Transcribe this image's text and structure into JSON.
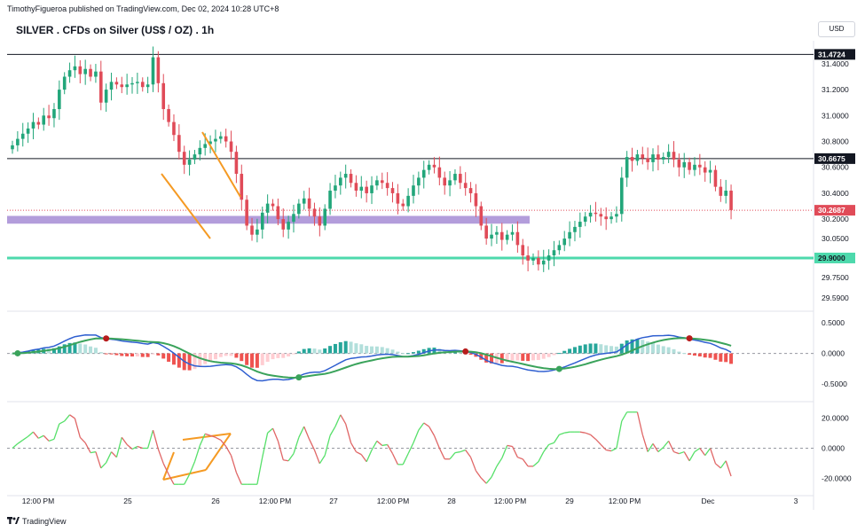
{
  "header": {
    "publisher_line": "TimothyFigueroa published on TradingView.com, Dec 02, 2024 10:28 UTC+8",
    "title": "SILVER . CFDs on Silver (US$ / OZ) . 1h",
    "currency": "USD"
  },
  "footer": {
    "brand": "TradingView"
  },
  "colors": {
    "up": "#22a67a",
    "down": "#e04b58",
    "support_zone": "#b39ddb",
    "support_line": "#4dd9ac",
    "annotation": "#f59a23",
    "fast_line": "#2f5fd0",
    "signal_up": "#3aa35b",
    "signal_down": "#b71c1c",
    "osc_up": "#57e06a",
    "osc_down": "#e06666"
  },
  "chart_data": [
    {
      "type": "candlestick",
      "title": "SILVER . CFDs on Silver (US$ / OZ) . 1h",
      "y_ticks": [
        "31.4000",
        "31.2000",
        "31.0000",
        "30.8000",
        "30.6000",
        "30.4000",
        "30.2000",
        "30.0500",
        "29.7500",
        "29.5900"
      ],
      "y_range": [
        29.53,
        31.55
      ],
      "x_ticks": [
        "12:00 PM",
        "25",
        "26",
        "12:00 PM",
        "27",
        "12:00 PM",
        "28",
        "12:00 PM",
        "29",
        "12:00 PM",
        "Dec",
        "3"
      ],
      "price_tags": [
        {
          "label": "31.4724",
          "value": 31.4724,
          "kind": "line"
        },
        {
          "label": "30.6675",
          "value": 30.6675,
          "kind": "line"
        },
        {
          "label": "30.2687",
          "value": 30.2687,
          "kind": "last"
        },
        {
          "label": "29.9000",
          "value": 29.9,
          "kind": "support"
        }
      ],
      "horizontal_lines": [
        31.4724,
        30.6675
      ],
      "support_zone": [
        30.165,
        30.225
      ],
      "support_line": 29.9,
      "closes": [
        30.77,
        30.82,
        30.86,
        30.9,
        30.95,
        30.93,
        31.0,
        30.98,
        31.05,
        31.2,
        31.3,
        31.35,
        31.38,
        31.32,
        31.36,
        31.3,
        31.34,
        31.1,
        31.2,
        31.26,
        31.24,
        31.22,
        31.24,
        31.25,
        31.26,
        31.22,
        31.24,
        31.45,
        31.25,
        31.05,
        30.95,
        30.85,
        30.72,
        30.62,
        30.66,
        30.7,
        30.75,
        30.78,
        30.8,
        30.82,
        30.84,
        30.8,
        30.72,
        30.55,
        30.35,
        30.15,
        30.08,
        30.12,
        30.25,
        30.32,
        30.3,
        30.2,
        30.12,
        30.18,
        30.24,
        30.32,
        30.36,
        30.28,
        30.22,
        30.15,
        30.28,
        30.42,
        30.46,
        30.52,
        30.55,
        30.48,
        30.42,
        30.45,
        30.4,
        30.46,
        30.5,
        30.48,
        30.44,
        30.4,
        30.32,
        30.3,
        30.38,
        30.46,
        30.52,
        30.58,
        30.62,
        30.6,
        30.52,
        30.46,
        30.5,
        30.55,
        30.48,
        30.44,
        30.4,
        30.3,
        30.15,
        30.05,
        30.08,
        30.1,
        30.04,
        30.08,
        30.1,
        30.0,
        29.92,
        29.88,
        29.9,
        29.85,
        29.88,
        29.92,
        29.96,
        30.0,
        30.05,
        30.1,
        30.14,
        30.18,
        30.22,
        30.25,
        30.24,
        30.22,
        30.2,
        30.22,
        30.24,
        30.52,
        30.68,
        30.65,
        30.7,
        30.67,
        30.64,
        30.7,
        30.66,
        30.68,
        30.72,
        30.66,
        30.6,
        30.64,
        30.58,
        30.62,
        30.6,
        30.56,
        30.58,
        30.45,
        30.38,
        30.42,
        30.27
      ]
    },
    {
      "type": "line",
      "name_hidden": true,
      "y_ticks": [
        "0.5000",
        "0.0000",
        "-0.5000"
      ],
      "y_range": [
        -0.72,
        0.62
      ]
    },
    {
      "type": "line",
      "name_hidden": true,
      "y_ticks": [
        "20.0000",
        "0.0000",
        "-20.0000"
      ],
      "y_range": [
        -28,
        28
      ]
    }
  ]
}
